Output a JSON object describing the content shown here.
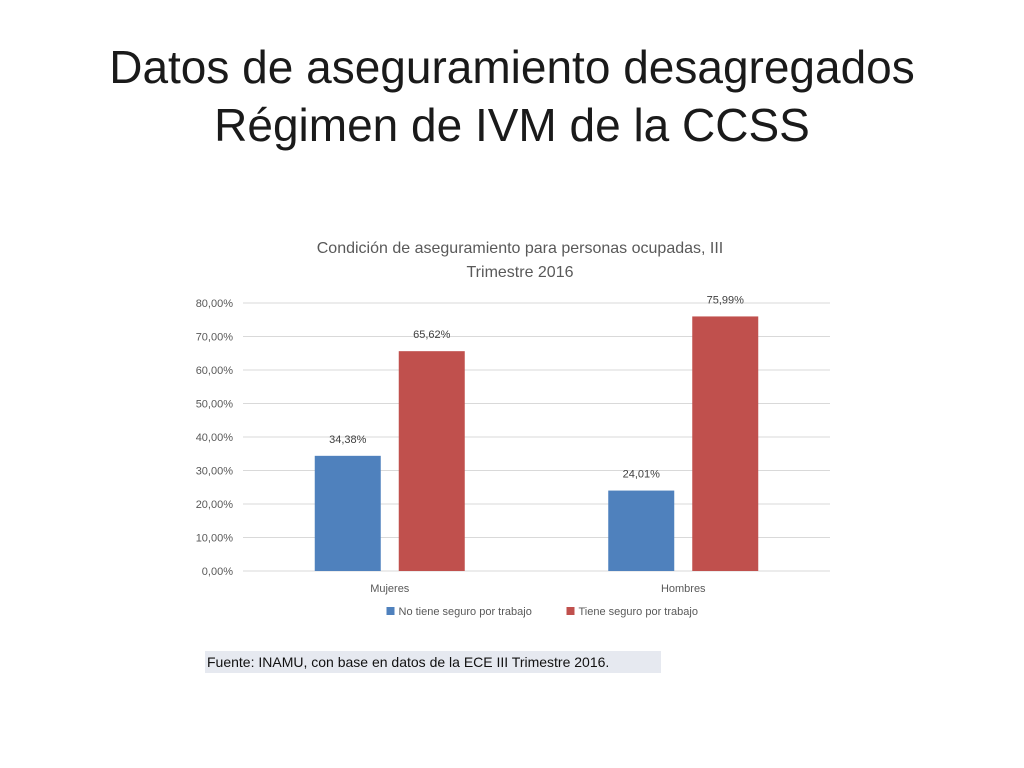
{
  "slide": {
    "title_line1": "Datos de aseguramiento desagregados",
    "title_line2": "Régimen de IVM de la CCSS"
  },
  "chart_data": {
    "type": "bar",
    "title_line1": "Condición de aseguramiento para personas ocupadas, III",
    "title_line2": "Trimestre 2016",
    "categories": [
      "Mujeres",
      "Hombres"
    ],
    "series": [
      {
        "name": "No tiene seguro por trabajo",
        "values": [
          34.38,
          24.01
        ],
        "labels": [
          "34,38%",
          "24,01%"
        ],
        "color": "#4f81bd"
      },
      {
        "name": "Tiene seguro por trabajo",
        "values": [
          65.62,
          75.99
        ],
        "labels": [
          "65,62%",
          "75,99%"
        ],
        "color": "#c0504d"
      }
    ],
    "yticks": [
      "0,00%",
      "10,00%",
      "20,00%",
      "30,00%",
      "40,00%",
      "50,00%",
      "60,00%",
      "70,00%",
      "80,00%"
    ],
    "ylim": [
      0,
      80
    ],
    "grid": true,
    "legend_position": "bottom"
  },
  "source": {
    "text": "Fuente: INAMU, con base en datos de la ECE III Trimestre 2016."
  }
}
